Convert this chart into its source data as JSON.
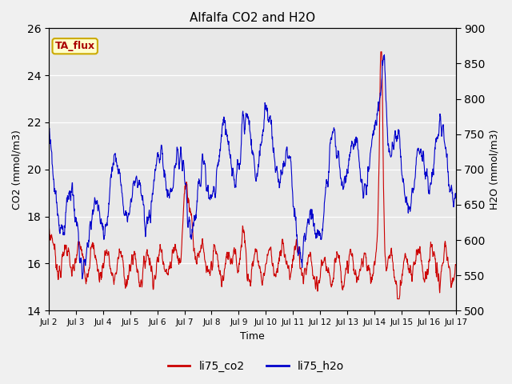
{
  "title": "Alfalfa CO2 and H2O",
  "xlabel": "Time",
  "ylabel_left": "CO2 (mmol/m3)",
  "ylabel_right": "H2O (mmol/m3)",
  "ylim_left": [
    14,
    26
  ],
  "ylim_right": [
    500,
    900
  ],
  "yticks_left": [
    14,
    16,
    18,
    20,
    22,
    24,
    26
  ],
  "yticks_right": [
    500,
    550,
    600,
    650,
    700,
    750,
    800,
    850,
    900
  ],
  "xtick_labels": [
    "Jul 2",
    "Jul 3",
    "Jul 4",
    "Jul 5",
    "Jul 6",
    "Jul 7",
    "Jul 8",
    "Jul 9",
    "Jul 10",
    "Jul 11",
    "Jul 12",
    "Jul 13",
    "Jul 14",
    "Jul 15",
    "Jul 16",
    "Jul 17"
  ],
  "color_co2": "#cc0000",
  "color_h2o": "#0000cc",
  "label_co2": "li75_co2",
  "label_h2o": "li75_h2o",
  "tag_text": "TA_flux",
  "tag_bg": "#ffffcc",
  "tag_border": "#ccaa00",
  "fig_bg": "#f0f0f0",
  "plot_bg": "#e8e8e8",
  "n_points": 1500,
  "seed": 7
}
